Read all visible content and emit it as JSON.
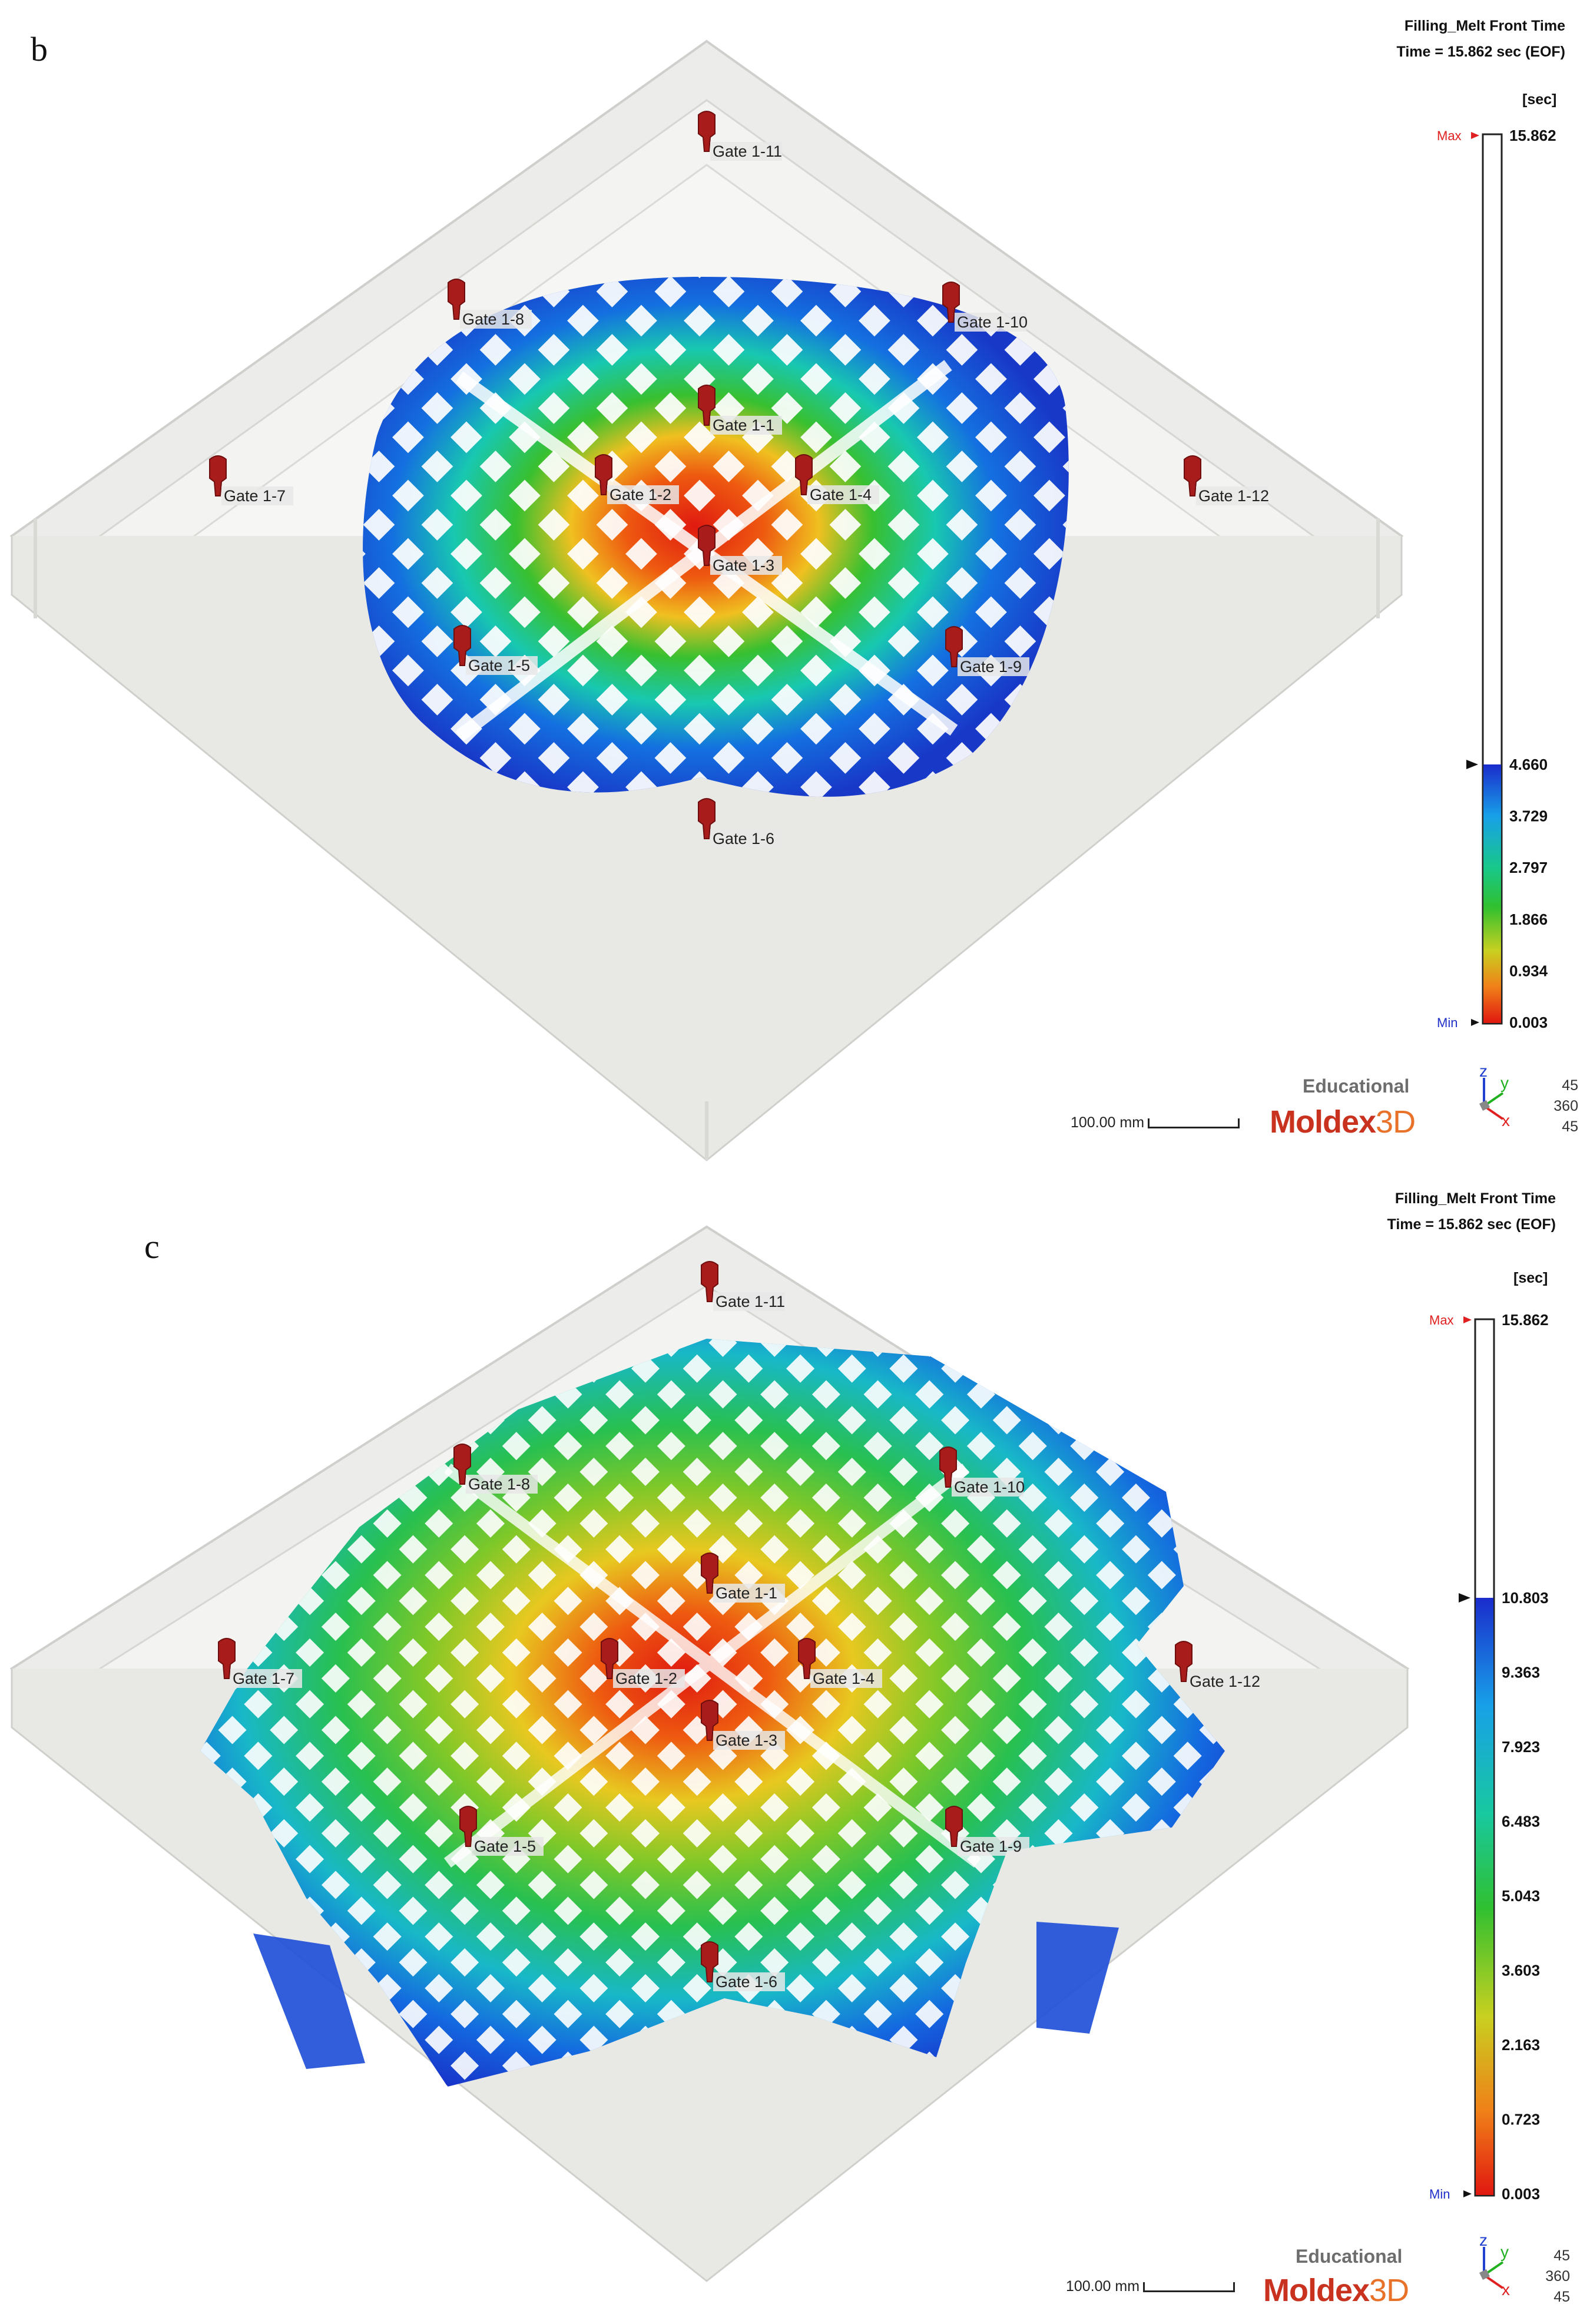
{
  "panels": [
    {
      "label": "b",
      "title": "Filling_Melt Front Time",
      "time": "Time = 15.862 sec (EOF)",
      "unit": "[sec]",
      "max_marker": "Max",
      "min_marker": "Min",
      "max_value": "15.862",
      "legend_ticks": [
        "4.660",
        "3.729",
        "2.797",
        "1.866",
        "0.934",
        "0.003"
      ],
      "gates": [
        "Gate 1-11",
        "Gate 1-8",
        "Gate 1-10",
        "Gate 1-1",
        "Gate 1-7",
        "Gate 1-2",
        "Gate 1-4",
        "Gate 1-12",
        "Gate 1-3",
        "Gate 1-5",
        "Gate 1-9",
        "Gate 1-6"
      ],
      "watermark": "Educational",
      "brand": "Moldex",
      "brand_suffix": "3D",
      "scale_bar": "100.00 mm",
      "axes": {
        "z": "z",
        "y": "y",
        "x": "x"
      },
      "view_angles": [
        "45",
        "360",
        "45"
      ]
    },
    {
      "label": "c",
      "title": "Filling_Melt Front Time",
      "time": "Time = 15.862 sec (EOF)",
      "unit": "[sec]",
      "max_marker": "Max",
      "min_marker": "Min",
      "max_value": "15.862",
      "legend_ticks": [
        "10.803",
        "9.363",
        "7.923",
        "6.483",
        "5.043",
        "3.603",
        "2.163",
        "0.723",
        "0.003"
      ],
      "gates": [
        "Gate 1-11",
        "Gate 1-8",
        "Gate 1-10",
        "Gate 1-1",
        "Gate 1-7",
        "Gate 1-2",
        "Gate 1-4",
        "Gate 1-12",
        "Gate 1-3",
        "Gate 1-5",
        "Gate 1-9",
        "Gate 1-6"
      ],
      "watermark": "Educational",
      "brand": "Moldex",
      "brand_suffix": "3D",
      "scale_bar": "100.00 mm",
      "axes": {
        "z": "z",
        "y": "y",
        "x": "x"
      },
      "view_angles": [
        "45",
        "360",
        "45"
      ]
    }
  ],
  "colors": {
    "gate_marker": "#a81c1c",
    "legend_max": "#e02020",
    "legend_min": "#2030c8",
    "axis_x": "#e02020",
    "axis_y": "#20b020",
    "axis_z": "#2040d0",
    "ghost_mold": "#e6e6e2"
  }
}
